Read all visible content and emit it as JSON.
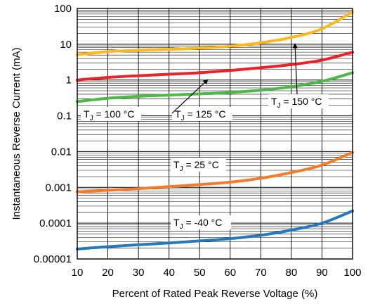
{
  "chart_data": {
    "type": "line",
    "xlabel": "Percent of Rated Peak Reverse Voltage (%)",
    "ylabel": "Instantaneous Reverse Current (mA)",
    "xlim": [
      10,
      100
    ],
    "ylim": [
      1e-05,
      100
    ],
    "yscale": "log",
    "x_ticks": [
      10,
      20,
      30,
      40,
      50,
      60,
      70,
      80,
      90,
      100
    ],
    "x_tick_labels": [
      "10",
      "20",
      "30",
      "40",
      "50",
      "60",
      "70",
      "80",
      "90",
      "100"
    ],
    "y_ticks": [
      1e-05,
      0.0001,
      0.001,
      0.01,
      0.1,
      1,
      10,
      100
    ],
    "y_tick_labels": [
      "0.00001",
      "0.0001",
      "0.001",
      "0.01",
      "0.1",
      "1",
      "10",
      "100"
    ],
    "grid": true,
    "series": [
      {
        "name": "TJ = 150 °C",
        "color": "#fbb91f",
        "x": [
          10,
          20,
          30,
          40,
          50,
          60,
          70,
          80,
          90,
          100
        ],
        "values": [
          5.1,
          6.2,
          6.8,
          7.2,
          7.8,
          8.8,
          11.0,
          15.5,
          27,
          80
        ]
      },
      {
        "name": "TJ = 125 °C",
        "color": "#e8232a",
        "x": [
          10,
          20,
          30,
          40,
          50,
          60,
          70,
          80,
          90,
          100
        ],
        "values": [
          1.0,
          1.18,
          1.32,
          1.45,
          1.6,
          1.85,
          2.2,
          2.7,
          3.6,
          6.0
        ]
      },
      {
        "name": "TJ = 100 °C",
        "color": "#4cb848",
        "x": [
          10,
          20,
          30,
          40,
          50,
          60,
          70,
          80,
          90,
          100
        ],
        "values": [
          0.25,
          0.31,
          0.35,
          0.38,
          0.41,
          0.45,
          0.52,
          0.65,
          0.92,
          1.6
        ]
      },
      {
        "name": "TJ = 25 °C",
        "color": "#f47b2a",
        "x": [
          10,
          20,
          30,
          40,
          50,
          60,
          70,
          80,
          90,
          100
        ],
        "values": [
          0.00075,
          0.00083,
          0.00092,
          0.00105,
          0.0012,
          0.0014,
          0.0018,
          0.0026,
          0.0042,
          0.0095
        ]
      },
      {
        "name": "TJ = -40 °C",
        "color": "#2678bd",
        "x": [
          10,
          20,
          30,
          40,
          50,
          60,
          70,
          80,
          90,
          100
        ],
        "values": [
          1.9e-05,
          2.2e-05,
          2.5e-05,
          2.8e-05,
          3.2e-05,
          3.7e-05,
          4.6e-05,
          6.4e-05,
          0.0001,
          0.00022
        ]
      }
    ],
    "annotations": [
      {
        "label": "T",
        "sub": "J",
        "rest": " = 100 °C",
        "series": "TJ = 100 °C"
      },
      {
        "label": "T",
        "sub": "J",
        "rest": " = 125 °C",
        "series": "TJ = 125 °C"
      },
      {
        "label": "T",
        "sub": "J",
        "rest": " = 150 °C",
        "series": "TJ = 150 °C"
      },
      {
        "label": "T",
        "sub": "J",
        "rest": " = 25 °C",
        "series": "TJ = 25 °C"
      },
      {
        "label": "T",
        "sub": "J",
        "rest": " = -40 °C",
        "series": "TJ = -40 °C"
      }
    ]
  }
}
